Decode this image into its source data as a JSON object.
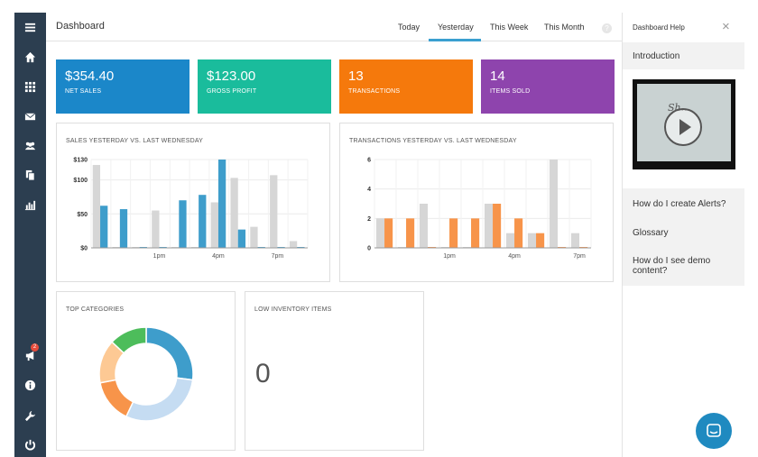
{
  "header": {
    "title": "Dashboard",
    "tabs": [
      "Today",
      "Yesterday",
      "This Week",
      "This Month"
    ],
    "active_tab": "Yesterday",
    "help_icon": "?"
  },
  "sidebar": {
    "icons": [
      "menu-icon",
      "home-icon",
      "grid-icon",
      "mail-icon",
      "users-icon",
      "documents-icon",
      "bar-chart-icon",
      "megaphone-icon",
      "info-icon",
      "wrench-icon",
      "power-icon"
    ],
    "notification_count": "2"
  },
  "kpis": [
    {
      "value": "$354.40",
      "label": "NET SALES",
      "color": "#1b87c9"
    },
    {
      "value": "$123.00",
      "label": "GROSS PROFIT",
      "color": "#1abc9c"
    },
    {
      "value": "13",
      "label": "TRANSACTIONS",
      "color": "#f5790c"
    },
    {
      "value": "14",
      "label": "ITEMS SOLD",
      "color": "#8e44ad"
    }
  ],
  "panels": {
    "sales_title": "SALES YESTERDAY VS. LAST WEDNESDAY",
    "transactions_title": "TRANSACTIONS YESTERDAY VS. LAST WEDNESDAY",
    "categories_title": "TOP CATEGORIES",
    "inventory_title": "LOW INVENTORY ITEMS",
    "inventory_value": "0"
  },
  "chart_data": [
    {
      "type": "bar",
      "title": "SALES YESTERDAY VS. LAST WEDNESDAY",
      "ylim": [
        0,
        130
      ],
      "y_ticks": [
        "$0",
        "$50",
        "$100",
        "$130"
      ],
      "x_tick_labels": [
        {
          "label": "1pm",
          "index": 3
        },
        {
          "label": "4pm",
          "index": 6
        },
        {
          "label": "7pm",
          "index": 9
        }
      ],
      "series": [
        {
          "color": "#d6d6d6",
          "values": [
            122,
            0,
            0,
            55,
            0,
            0,
            67,
            103,
            31,
            107,
            10
          ]
        },
        {
          "color": "#3e9dcb",
          "values": [
            62,
            57,
            0,
            0,
            70,
            78,
            130,
            27,
            0,
            0,
            0
          ]
        }
      ]
    },
    {
      "type": "bar",
      "title": "TRANSACTIONS YESTERDAY VS. LAST WEDNESDAY",
      "ylim": [
        0,
        6
      ],
      "y_ticks": [
        "0",
        "2",
        "4",
        "6"
      ],
      "x_tick_labels": [
        {
          "label": "1pm",
          "index": 3
        },
        {
          "label": "4pm",
          "index": 6
        },
        {
          "label": "7pm",
          "index": 9
        }
      ],
      "series": [
        {
          "color": "#d6d6d6",
          "values": [
            2,
            0,
            3,
            0,
            0,
            3,
            1,
            1,
            6,
            1
          ]
        },
        {
          "color": "#f7944a",
          "values": [
            2,
            2,
            0,
            2,
            2,
            3,
            2,
            1,
            0,
            0
          ]
        }
      ]
    },
    {
      "type": "pie",
      "title": "TOP CATEGORIES",
      "slices": [
        {
          "value": 27,
          "color": "#3e9dcb"
        },
        {
          "value": 30,
          "color": "#c5dcf2"
        },
        {
          "value": 15,
          "color": "#f7944a"
        },
        {
          "value": 15,
          "color": "#fdc994"
        },
        {
          "value": 13,
          "color": "#4dbd5b"
        }
      ]
    }
  ],
  "help": {
    "title": "Dashboard Help",
    "close_icon": "×",
    "intro": "Introduction",
    "video_script": "Sh...",
    "items": [
      "How do I create Alerts?",
      "Glossary",
      "How do I see demo content?"
    ]
  }
}
